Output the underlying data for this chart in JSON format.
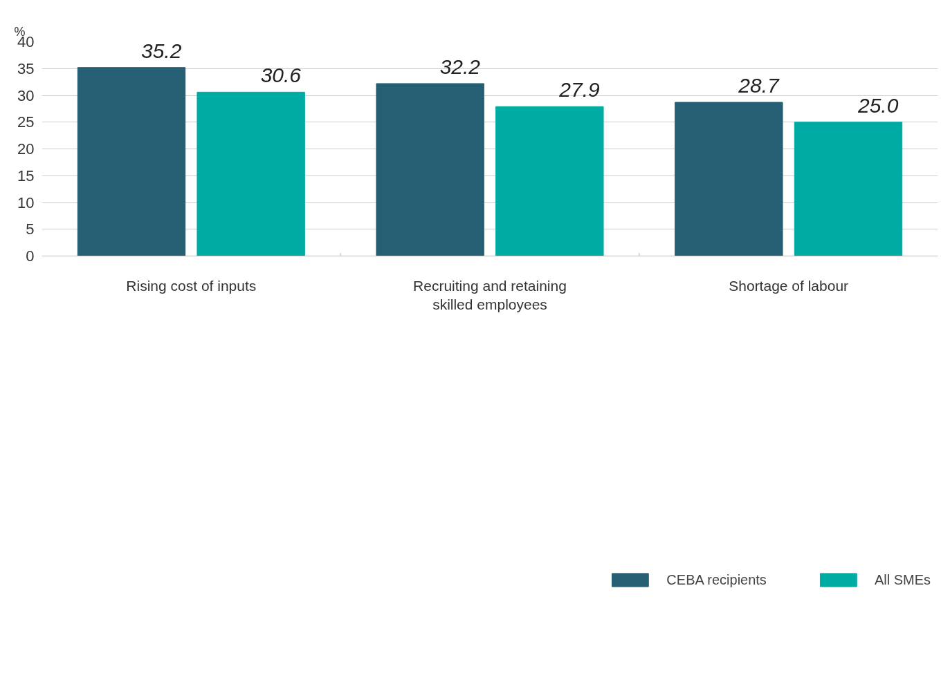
{
  "chart_data": {
    "type": "bar",
    "ylabel": "%",
    "categories": [
      "Rising cost of inputs",
      "Recruiting and retaining\nskilled employees",
      "Shortage of labour"
    ],
    "series": [
      {
        "name": "CEBA recipients",
        "color": "#265f73",
        "values": [
          35.2,
          32.2,
          28.7
        ]
      },
      {
        "name": "All SMEs",
        "color": "#00aba3",
        "values": [
          30.6,
          27.9,
          25.0
        ]
      }
    ],
    "value_labels": [
      [
        "35.2",
        "32.2",
        "28.7"
      ],
      [
        "30.6",
        "27.9",
        "25.0"
      ]
    ],
    "ylim": [
      0,
      40
    ],
    "yticks": [
      0,
      5,
      10,
      15,
      20,
      25,
      30,
      35,
      40
    ],
    "grid": "y",
    "legend": "bottom right"
  }
}
